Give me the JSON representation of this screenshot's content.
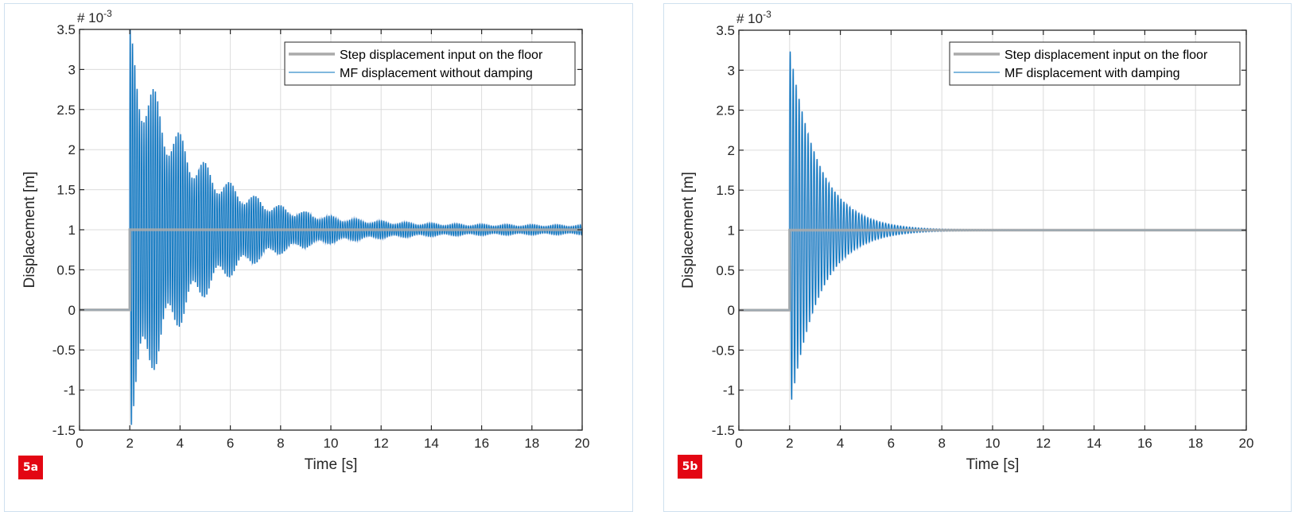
{
  "figures": [
    {
      "id": "5a",
      "badge": "5a",
      "exponent_label": "# 10",
      "exponent_power": "-3",
      "legend": [
        "Step displacement input on the floor",
        "MF displacement without damping"
      ]
    },
    {
      "id": "5b",
      "badge": "5b",
      "exponent_label": "# 10",
      "exponent_power": "-3",
      "legend": [
        "Step displacement input on the floor",
        "MF displacement with damping"
      ]
    }
  ],
  "colors": {
    "step_line": "#aaaaaa",
    "response_line": "#0072bd",
    "response_fill": "#a9c4e4",
    "grid": "#dcdcdc",
    "axis": "#262626",
    "badge": "#e30613",
    "panel_border": "#cfe0ef"
  },
  "chart_data": [
    {
      "type": "line",
      "title": "",
      "xlabel": "Time [s]",
      "ylabel": "Displacement [m]",
      "xlim": [
        0,
        20
      ],
      "ylim": [
        -1.5,
        3.5
      ],
      "y_scale_factor": "10^-3",
      "xticks": [
        0,
        2,
        4,
        6,
        8,
        10,
        12,
        14,
        16,
        18,
        20
      ],
      "yticks": [
        -1.5,
        -1,
        -0.5,
        0,
        0.5,
        1,
        1.5,
        2,
        2.5,
        3,
        3.5
      ],
      "xtick_labels": [
        "0",
        "2",
        "4",
        "6",
        "8",
        "10",
        "12",
        "14",
        "16",
        "18",
        "20"
      ],
      "ytick_labels": [
        "-1.5",
        "-1",
        "-0.5",
        "0",
        "0.5",
        "1",
        "1.5",
        "2",
        "2.5",
        "3",
        "3.5"
      ],
      "grid": true,
      "legend_position": "upper right",
      "series": [
        {
          "name": "Step displacement input on the floor",
          "kind": "step",
          "step_time": 2.0,
          "before": 0,
          "after": 1.0
        },
        {
          "name": "MF displacement without damping",
          "kind": "oscillation",
          "start_time": 2.0,
          "final_value": 1.0,
          "peak_max": 3.47,
          "trough_min": -1.38,
          "frequency_hz": 11.0,
          "beat_frequency_hz": 1.0,
          "decay_time_const": 2.6,
          "residual_amplitude": 0.06,
          "sample_peaks": [
            {
              "t": 2.2,
              "y": 3.47
            },
            {
              "t": 2.6,
              "y": 3.08
            },
            {
              "t": 3.1,
              "y": 2.43
            },
            {
              "t": 3.5,
              "y": 2.25
            },
            {
              "t": 4.0,
              "y": 2.02
            },
            {
              "t": 6.0,
              "y": 1.55
            },
            {
              "t": 8.0,
              "y": 1.3
            },
            {
              "t": 10.0,
              "y": 1.15
            },
            {
              "t": 20.0,
              "y": 1.06
            }
          ],
          "sample_troughs": [
            {
              "t": 2.3,
              "y": -1.38
            },
            {
              "t": 2.7,
              "y": -0.55
            },
            {
              "t": 3.5,
              "y": -0.3
            },
            {
              "t": 6.0,
              "y": 0.45
            },
            {
              "t": 10.0,
              "y": 0.85
            },
            {
              "t": 20.0,
              "y": 0.94
            }
          ]
        }
      ]
    },
    {
      "type": "line",
      "title": "",
      "xlabel": "Time [s]",
      "ylabel": "Displacement [m]",
      "xlim": [
        0,
        20
      ],
      "ylim": [
        -1.5,
        3.5
      ],
      "y_scale_factor": "10^-3",
      "xticks": [
        0,
        2,
        4,
        6,
        8,
        10,
        12,
        14,
        16,
        18,
        20
      ],
      "yticks": [
        -1.5,
        -1,
        -0.5,
        0,
        0.5,
        1,
        1.5,
        2,
        2.5,
        3,
        3.5
      ],
      "xtick_labels": [
        "0",
        "2",
        "4",
        "6",
        "8",
        "10",
        "12",
        "14",
        "16",
        "18",
        "20"
      ],
      "ytick_labels": [
        "-1.5",
        "-1",
        "-0.5",
        "0",
        "0.5",
        "1",
        "1.5",
        "2",
        "2.5",
        "3",
        "3.5"
      ],
      "grid": true,
      "legend_position": "upper right",
      "series": [
        {
          "name": "Step displacement input on the floor",
          "kind": "step",
          "step_time": 2.0,
          "before": 0,
          "after": 1.0
        },
        {
          "name": "MF displacement with damping",
          "kind": "oscillation",
          "start_time": 2.0,
          "final_value": 1.0,
          "peak_max": 3.28,
          "trough_min": -1.05,
          "frequency_hz": 8.5,
          "beat_frequency_hz": 0.0,
          "decay_time_const": 1.15,
          "residual_amplitude": 0.0,
          "sample_peaks": [
            {
              "t": 2.1,
              "y": 3.28
            },
            {
              "t": 2.6,
              "y": 2.45
            },
            {
              "t": 3.0,
              "y": 1.8
            },
            {
              "t": 4.0,
              "y": 1.38
            },
            {
              "t": 5.0,
              "y": 1.15
            },
            {
              "t": 6.0,
              "y": 1.05
            },
            {
              "t": 8.0,
              "y": 1.0
            }
          ],
          "sample_troughs": [
            {
              "t": 2.25,
              "y": -1.05
            },
            {
              "t": 2.9,
              "y": -0.05
            },
            {
              "t": 4.0,
              "y": 0.55
            },
            {
              "t": 6.0,
              "y": 0.93
            },
            {
              "t": 8.0,
              "y": 1.0
            }
          ]
        }
      ]
    }
  ]
}
